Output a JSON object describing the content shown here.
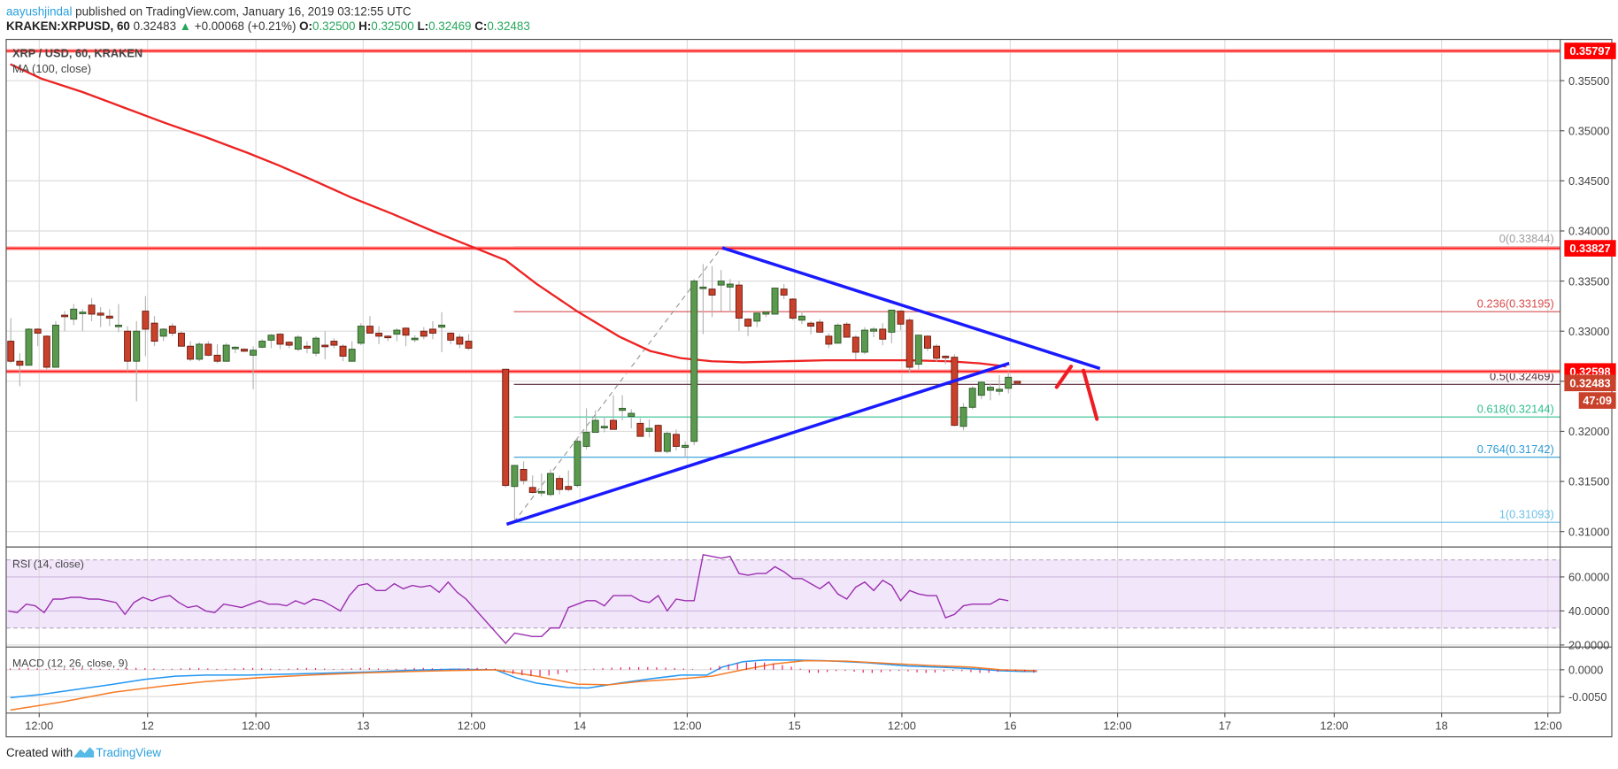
{
  "header": {
    "author": "aayushjindal",
    "published_text": " published on TradingView.com, January 16, 2019 03:12:55 UTC",
    "symbol_line": "KRAKEN:XRPUSD, 60",
    "last_price": "0.32483",
    "change_arrow": "▲",
    "change": "+0.00068 (+0.21%)",
    "ohlc": [
      {
        "label": "O:",
        "value": "0.32500"
      },
      {
        "label": "H:",
        "value": "0.32500"
      },
      {
        "label": "L:",
        "value": "0.32469"
      },
      {
        "label": "C:",
        "value": "0.32483"
      }
    ]
  },
  "price_pane": {
    "title": "XRP / USD, 60, KRAKEN",
    "ma_label": "MA (100, close)"
  },
  "rsi_pane": {
    "title": "RSI (14, close)"
  },
  "macd_pane": {
    "title": "MACD (12, 26, close, 9)"
  },
  "footer": {
    "created_with": "Created with",
    "brand": "TradingView"
  },
  "colors": {
    "up": "#5b9a4e",
    "down": "#c9412a",
    "resistance": "#ff1a1a",
    "trendline": "#1a1aff",
    "ma": "#ee2222",
    "rsi": "#9b2fae",
    "rsi_band": "#f2e6fb",
    "macd": "#2196f3",
    "signal": "#f57c28",
    "hist": "#e8195b",
    "fib_0": "#9e9e9e",
    "fib_236": "#d84b4b",
    "fib_05": "#5a2a3a",
    "fib_618": "#2fbf8f",
    "fib_764": "#2e9bd6",
    "fib_1": "#6fc0e8",
    "positive": "#26a65b",
    "link": "#2aa0dd"
  },
  "chart_data": [
    {
      "type": "candlestick",
      "title": "XRP / USD, 60, KRAKEN",
      "timeframe": "60",
      "exchange": "KRAKEN",
      "x_tick_labels": [
        "12:00",
        "12",
        "12:00",
        "13",
        "12:00",
        "14",
        "12:00",
        "15",
        "12:00",
        "16",
        "12:00",
        "17",
        "12:00",
        "18",
        "12:00"
      ],
      "y_tick_labels": [
        "0.35500",
        "0.35000",
        "0.34500",
        "0.34000",
        "0.33500",
        "0.33000",
        "0.32500",
        "0.32000",
        "0.31500",
        "0.31000"
      ],
      "ylim": [
        0.3085,
        0.36
      ],
      "price_tags": [
        {
          "value": "0.35797",
          "kind": "horizontal-line",
          "color": "#ff0000"
        },
        {
          "value": "0.33827",
          "kind": "horizontal-line",
          "color": "#ff0000"
        },
        {
          "value": "0.32598",
          "kind": "horizontal-line",
          "color": "#ff0000"
        },
        {
          "value": "0.32483",
          "kind": "last-price",
          "color": "#c9412a"
        },
        {
          "value": "47:09",
          "kind": "bar-countdown",
          "color": "#c9412a"
        }
      ],
      "horizontal_lines": [
        0.35797,
        0.33827,
        0.32598
      ],
      "fibonacci": [
        {
          "level": "0",
          "price": "0.33844",
          "label": "0(0.33844)"
        },
        {
          "level": "0.236",
          "price": "0.33195",
          "label": "0.236(0.33195)"
        },
        {
          "level": "0.5",
          "price": "0.32469",
          "label": "0.5(0.32469)"
        },
        {
          "level": "0.618",
          "price": "0.32144",
          "label": "0.618(0.32144)"
        },
        {
          "level": "0.764",
          "price": "0.31742",
          "label": "0.764(0.31742)"
        },
        {
          "level": "1",
          "price": "0.31093",
          "label": "1(0.31093)"
        }
      ],
      "indicator": "MA (100, close)",
      "annotations": [
        "contracting triangle (blue trendlines) with resistance near 0.3290 and support near 0.3255",
        "projected path: bounce toward 0.3265 then drop toward 0.3215"
      ],
      "candles_ohlc_approx": [
        [
          0.329,
          0.3313,
          0.3268,
          0.327
        ],
        [
          0.327,
          0.3278,
          0.3245,
          0.3266
        ],
        [
          0.3266,
          0.3303,
          0.3266,
          0.3302
        ],
        [
          0.3302,
          0.3303,
          0.3285,
          0.3298
        ],
        [
          0.3295,
          0.3296,
          0.3262,
          0.3264
        ],
        [
          0.3264,
          0.331,
          0.3264,
          0.3306
        ],
        [
          0.3316,
          0.332,
          0.33,
          0.3315
        ],
        [
          0.3312,
          0.3327,
          0.3306,
          0.3322
        ],
        [
          0.3318,
          0.3322,
          0.33,
          0.3319
        ],
        [
          0.3326,
          0.3333,
          0.331,
          0.3317
        ],
        [
          0.3318,
          0.3324,
          0.3304,
          0.3316
        ],
        [
          0.3315,
          0.3322,
          0.3305,
          0.3313
        ],
        [
          0.3305,
          0.3327,
          0.3299,
          0.3306
        ],
        [
          0.33,
          0.3305,
          0.326,
          0.327
        ],
        [
          0.327,
          0.331,
          0.323,
          0.33
        ],
        [
          0.332,
          0.3335,
          0.3275,
          0.3302
        ],
        [
          0.3308,
          0.3315,
          0.3285,
          0.329
        ],
        [
          0.3295,
          0.3303,
          0.329,
          0.3302
        ],
        [
          0.3305,
          0.3308,
          0.3295,
          0.3298
        ],
        [
          0.3298,
          0.33,
          0.3285,
          0.3285
        ],
        [
          0.3285,
          0.329,
          0.327,
          0.3272
        ],
        [
          0.3272,
          0.3289,
          0.327,
          0.3287
        ],
        [
          0.3287,
          0.329,
          0.3275,
          0.3276
        ],
        [
          0.3276,
          0.3287,
          0.3268,
          0.327
        ],
        [
          0.327,
          0.3288,
          0.327,
          0.3286
        ],
        [
          0.3284,
          0.3285,
          0.3278,
          0.3284
        ],
        [
          0.3282,
          0.3283,
          0.3279,
          0.328
        ],
        [
          0.3276,
          0.3285,
          0.3242,
          0.3281
        ],
        [
          0.3284,
          0.3292,
          0.3283,
          0.329
        ],
        [
          0.3291,
          0.3297,
          0.3283,
          0.3296
        ],
        [
          0.3297,
          0.3298,
          0.3282,
          0.3287
        ],
        [
          0.3289,
          0.329,
          0.3283,
          0.3286
        ],
        [
          0.3282,
          0.3296,
          0.328,
          0.3294
        ],
        [
          0.3285,
          0.329,
          0.3278,
          0.3283
        ],
        [
          0.3278,
          0.3295,
          0.3275,
          0.3293
        ],
        [
          0.3286,
          0.33,
          0.3272,
          0.3285
        ],
        [
          0.329,
          0.3293,
          0.3283,
          0.3286
        ],
        [
          0.3285,
          0.3287,
          0.327,
          0.3275
        ],
        [
          0.327,
          0.329,
          0.327,
          0.3282
        ],
        [
          0.3288,
          0.3308,
          0.3286,
          0.3305
        ],
        [
          0.3305,
          0.3315,
          0.3298,
          0.3298
        ],
        [
          0.3298,
          0.3305,
          0.3287,
          0.3295
        ],
        [
          0.3295,
          0.3296,
          0.329,
          0.3294
        ],
        [
          0.3297,
          0.3303,
          0.329,
          0.3301
        ],
        [
          0.3303,
          0.3304,
          0.3285,
          0.3296
        ],
        [
          0.3293,
          0.3296,
          0.3289,
          0.3293
        ],
        [
          0.33,
          0.3304,
          0.3292,
          0.3295
        ],
        [
          0.3302,
          0.331,
          0.3292,
          0.3298
        ],
        [
          0.3304,
          0.3319,
          0.3279,
          0.3306
        ],
        [
          0.3298,
          0.3299,
          0.3287,
          0.3291
        ],
        [
          0.3294,
          0.3297,
          0.3283,
          0.3287
        ],
        [
          0.329,
          0.3297,
          0.3281,
          0.3283
        ],
        [
          0.3262,
          0.3262,
          0.3144,
          0.3146
        ],
        [
          0.3145,
          0.3166,
          0.3109,
          0.3166
        ],
        [
          0.3162,
          0.317,
          0.3147,
          0.3151
        ],
        [
          0.3144,
          0.3156,
          0.3138,
          0.3139
        ],
        [
          0.314,
          0.3158,
          0.3135,
          0.314
        ],
        [
          0.3137,
          0.3162,
          0.3135,
          0.3158
        ],
        [
          0.3153,
          0.3156,
          0.3137,
          0.3142
        ],
        [
          0.3145,
          0.3161,
          0.314,
          0.3142
        ],
        [
          0.3146,
          0.3194,
          0.3144,
          0.319
        ],
        [
          0.3185,
          0.3223,
          0.3182,
          0.3199
        ],
        [
          0.3199,
          0.3221,
          0.3199,
          0.3211
        ],
        [
          0.3204,
          0.3215,
          0.3199,
          0.3205
        ],
        [
          0.3211,
          0.3236,
          0.321,
          0.3202
        ],
        [
          0.3221,
          0.3236,
          0.3211,
          0.3223
        ],
        [
          0.3215,
          0.3222,
          0.3203,
          0.3218
        ],
        [
          0.3208,
          0.3213,
          0.3198,
          0.3195
        ],
        [
          0.32,
          0.3212,
          0.3194,
          0.3203
        ],
        [
          0.3206,
          0.3207,
          0.318,
          0.318
        ],
        [
          0.318,
          0.32,
          0.3178,
          0.3198
        ],
        [
          0.3197,
          0.3202,
          0.3181,
          0.3185
        ],
        [
          0.3184,
          0.319,
          0.3174,
          0.3186
        ],
        [
          0.319,
          0.3352,
          0.3186,
          0.335
        ],
        [
          0.3344,
          0.3367,
          0.3297,
          0.3344
        ],
        [
          0.3342,
          0.3365,
          0.3314,
          0.3336
        ],
        [
          0.3346,
          0.3361,
          0.332,
          0.335
        ],
        [
          0.3344,
          0.3352,
          0.3319,
          0.3347
        ],
        [
          0.3346,
          0.335,
          0.33,
          0.3313
        ],
        [
          0.3312,
          0.3313,
          0.3295,
          0.3305
        ],
        [
          0.331,
          0.3318,
          0.3304,
          0.3318
        ],
        [
          0.3317,
          0.332,
          0.3314,
          0.3319
        ],
        [
          0.3317,
          0.3343,
          0.3317,
          0.3343
        ],
        [
          0.3342,
          0.3347,
          0.3332,
          0.3336
        ],
        [
          0.3332,
          0.3333,
          0.3311,
          0.3313
        ],
        [
          0.3311,
          0.332,
          0.3307,
          0.3315
        ],
        [
          0.3308,
          0.331,
          0.3297,
          0.3305
        ],
        [
          0.3309,
          0.3312,
          0.3301,
          0.3299
        ],
        [
          0.3295,
          0.3298,
          0.3283,
          0.3287
        ],
        [
          0.3288,
          0.3308,
          0.3288,
          0.3306
        ],
        [
          0.3307,
          0.3309,
          0.3294,
          0.3294
        ],
        [
          0.3294,
          0.3296,
          0.3272,
          0.3279
        ],
        [
          0.3279,
          0.3304,
          0.3277,
          0.3301
        ],
        [
          0.33,
          0.3304,
          0.3294,
          0.3302
        ],
        [
          0.3302,
          0.3308,
          0.3286,
          0.3292
        ],
        [
          0.3299,
          0.3321,
          0.3288,
          0.3321
        ],
        [
          0.332,
          0.3321,
          0.3301,
          0.3307
        ],
        [
          0.3311,
          0.3313,
          0.3258,
          0.3264
        ],
        [
          0.3267,
          0.3296,
          0.3262,
          0.3296
        ],
        [
          0.3295,
          0.3296,
          0.328,
          0.3283
        ],
        [
          0.3285,
          0.3287,
          0.3269,
          0.3273
        ],
        [
          0.3275,
          0.3276,
          0.3267,
          0.3274
        ],
        [
          0.3274,
          0.3277,
          0.3205,
          0.3206
        ],
        [
          0.3205,
          0.3228,
          0.3201,
          0.3224
        ],
        [
          0.3224,
          0.3245,
          0.3222,
          0.3243
        ],
        [
          0.3236,
          0.325,
          0.3232,
          0.3249
        ],
        [
          0.3241,
          0.3248,
          0.3231,
          0.3244
        ],
        [
          0.324,
          0.3256,
          0.3236,
          0.3242
        ],
        [
          0.3243,
          0.326,
          0.3238,
          0.3254
        ],
        [
          0.325,
          0.325,
          0.3247,
          0.3248
        ]
      ]
    },
    {
      "type": "line",
      "title": "RSI (14, close)",
      "y_tick_labels": [
        "60.0000",
        "40.0000",
        "20.0000"
      ],
      "band": [
        30,
        70
      ],
      "ylim": [
        15,
        78
      ],
      "values_approx": [
        40,
        39,
        44,
        43,
        39,
        47,
        47,
        48,
        48,
        47,
        47,
        46,
        45,
        38,
        45,
        48,
        46,
        48,
        49,
        45,
        42,
        43,
        40,
        39,
        44,
        43,
        42,
        44,
        46,
        44,
        44,
        43,
        46,
        44,
        47,
        46,
        43,
        40,
        49,
        55,
        56,
        52,
        52,
        56,
        53,
        55,
        54,
        55,
        51,
        57,
        51,
        47,
        21,
        27,
        26,
        25,
        25,
        30,
        30,
        42,
        44,
        46,
        46,
        43,
        49,
        49,
        49,
        46,
        45,
        49,
        40,
        47,
        46,
        46,
        73,
        72,
        71,
        72,
        62,
        61,
        62,
        62,
        66,
        63,
        59,
        59,
        56,
        53,
        57,
        50,
        47,
        54,
        57,
        52,
        58,
        55,
        46,
        52,
        50,
        49,
        49,
        36,
        38,
        43,
        44,
        44,
        44,
        47,
        46
      ]
    },
    {
      "type": "line",
      "title": "MACD (12, 26, close, 9)",
      "y_tick_labels": [
        "0.0000",
        "-0.0050"
      ],
      "series": [
        {
          "name": "MACD",
          "color": "#2196f3"
        },
        {
          "name": "Signal",
          "color": "#f57c28"
        },
        {
          "name": "Histogram",
          "color": "#e8195b"
        }
      ],
      "ylim": [
        -0.0075,
        0.004
      ]
    }
  ]
}
